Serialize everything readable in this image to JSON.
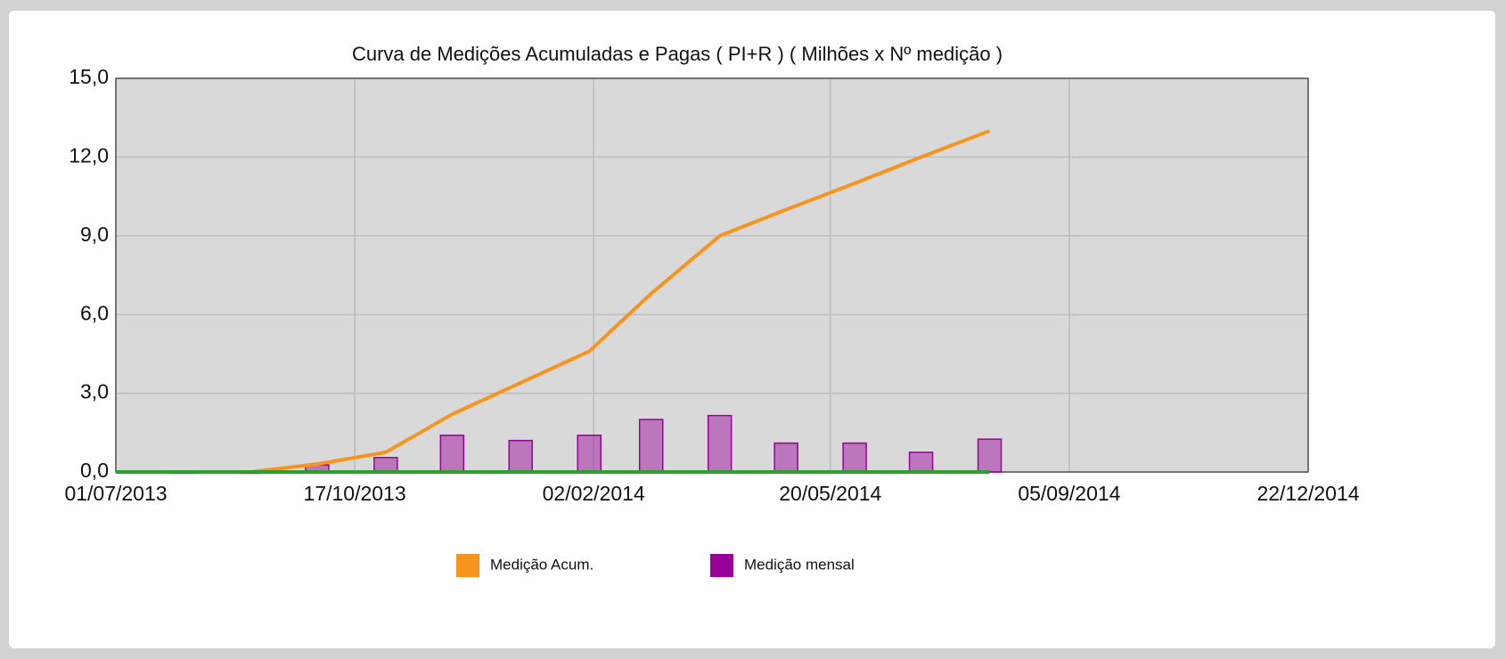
{
  "chart_data": {
    "type": "line",
    "title": "Curva de Medições Acumuladas e Pagas ( PI+R ) ( Milhões x Nº medição )",
    "x": [
      "31/07/2013",
      "31/08/2013",
      "30/09/2013",
      "31/10/2013",
      "30/11/2013",
      "31/12/2013",
      "31/01/2014",
      "28/02/2014",
      "31/03/2014",
      "30/04/2014",
      "31/05/2014",
      "30/06/2014",
      "31/07/2014"
    ],
    "series": [
      {
        "name": "Medição Acum.",
        "type": "line",
        "color": "#f7941d",
        "values": [
          0,
          0,
          0.3,
          0.75,
          2.2,
          3.4,
          4.6,
          6.8,
          9.0,
          10.0,
          11.0,
          12.0,
          13.0
        ]
      },
      {
        "name": "Medição mensal",
        "type": "bar",
        "color": "#990099",
        "values": [
          0,
          0,
          0.27,
          0.55,
          1.4,
          1.2,
          1.4,
          2.0,
          2.15,
          1.1,
          1.1,
          0.75,
          1.25
        ]
      },
      {
        "type": "line",
        "color": "#2ca02c",
        "x": [
          "01/07/2013",
          "31/07/2013",
          "31/08/2013",
          "30/09/2013",
          "31/10/2013",
          "30/11/2013",
          "31/12/2013",
          "31/01/2014",
          "28/02/2014",
          "31/03/2014",
          "30/04/2014",
          "31/05/2014",
          "30/06/2014",
          "31/07/2014"
        ],
        "values": [
          0,
          0,
          0,
          0,
          0,
          0,
          0,
          0,
          0,
          0,
          0,
          0,
          0,
          0
        ]
      }
    ],
    "xlim": [
      "01/07/2013",
      "22/12/2014"
    ],
    "xticks": [
      "01/07/2013",
      "17/10/2013",
      "02/02/2014",
      "20/05/2014",
      "05/09/2014",
      "22/12/2014"
    ],
    "ylim": [
      0,
      15
    ],
    "yticks": [
      {
        "value": 0,
        "label": "0,0"
      },
      {
        "value": 3,
        "label": "3,0"
      },
      {
        "value": 6,
        "label": "6,0"
      },
      {
        "value": 9,
        "label": "9,0"
      },
      {
        "value": 12,
        "label": "12,0"
      },
      {
        "value": 15,
        "label": "15,0"
      }
    ],
    "grid": true,
    "legend": "bottom"
  }
}
